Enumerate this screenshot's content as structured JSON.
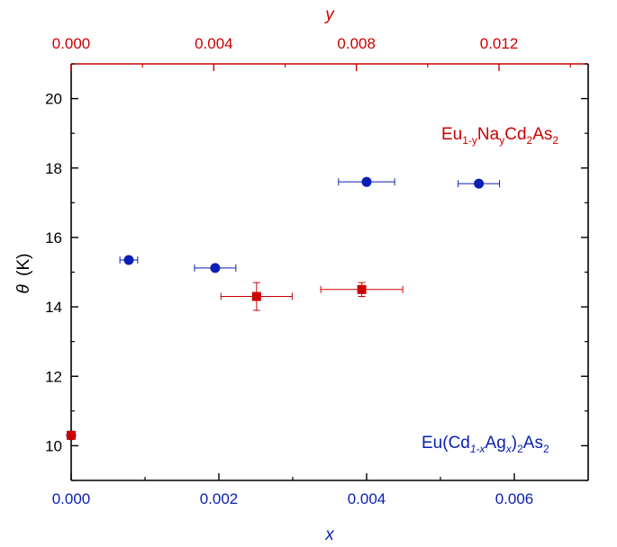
{
  "chart_data": {
    "type": "scatter",
    "colors": {
      "blue": "#0a1fb5",
      "red": "#cc0000",
      "frame": "#000000"
    },
    "x_bottom": {
      "label": "x",
      "lim": [
        0.0,
        0.007
      ],
      "ticks": [
        0.0,
        0.002,
        0.004,
        0.006
      ],
      "tick_labels": [
        "0.000",
        "0.002",
        "0.004",
        "0.006"
      ],
      "color": "#0a1fb5"
    },
    "x_top": {
      "label": "y",
      "lim": [
        0.0,
        0.0145
      ],
      "ticks": [
        0.0,
        0.004,
        0.008,
        0.012
      ],
      "tick_labels": [
        "0.000",
        "0.004",
        "0.008",
        "0.012"
      ],
      "color": "#cc0000"
    },
    "y_left": {
      "label": "θ",
      "unit": "(K)",
      "lim": [
        9.0,
        21.0
      ],
      "ticks": [
        10,
        12,
        14,
        16,
        18,
        20
      ],
      "tick_labels": [
        "10",
        "12",
        "14",
        "16",
        "18",
        "20"
      ]
    },
    "series": [
      {
        "name_label": {
          "main": "Eu(Cd",
          "sub1": "1-x",
          "mid": "Ag",
          "sub2": "x",
          "close": ")",
          "sub3": "2",
          "tail": "As",
          "sub4": "2"
        },
        "axis": "bottom",
        "marker": "circle",
        "color": "#0a1fb5",
        "points": [
          {
            "x": 0.0,
            "y": 10.3,
            "xerr": 0.0
          },
          {
            "x": 0.00078,
            "y": 15.35,
            "xerr": 0.00012
          },
          {
            "x": 0.00195,
            "y": 15.12,
            "xerr": 0.00028
          },
          {
            "x": 0.004,
            "y": 17.6,
            "xerr": 0.00038
          },
          {
            "x": 0.00552,
            "y": 17.55,
            "xerr": 0.00028
          }
        ]
      },
      {
        "name_label": {
          "main": "Eu",
          "sub1": "1-y",
          "mid": "Na",
          "sub2": "y",
          "tail": "Cd",
          "sub3": "2",
          "tail2": "As",
          "sub4": "2"
        },
        "axis": "top",
        "marker": "square",
        "color": "#cc0000",
        "points": [
          {
            "x": 0.0,
            "y": 10.3,
            "xerr": 0.0,
            "yerr": 0.0
          },
          {
            "x": 0.0052,
            "y": 14.3,
            "xerr": 0.001,
            "yerr": 0.4
          },
          {
            "x": 0.00815,
            "y": 14.5,
            "xerr": 0.00115,
            "yerr": 0.2
          }
        ]
      }
    ]
  }
}
